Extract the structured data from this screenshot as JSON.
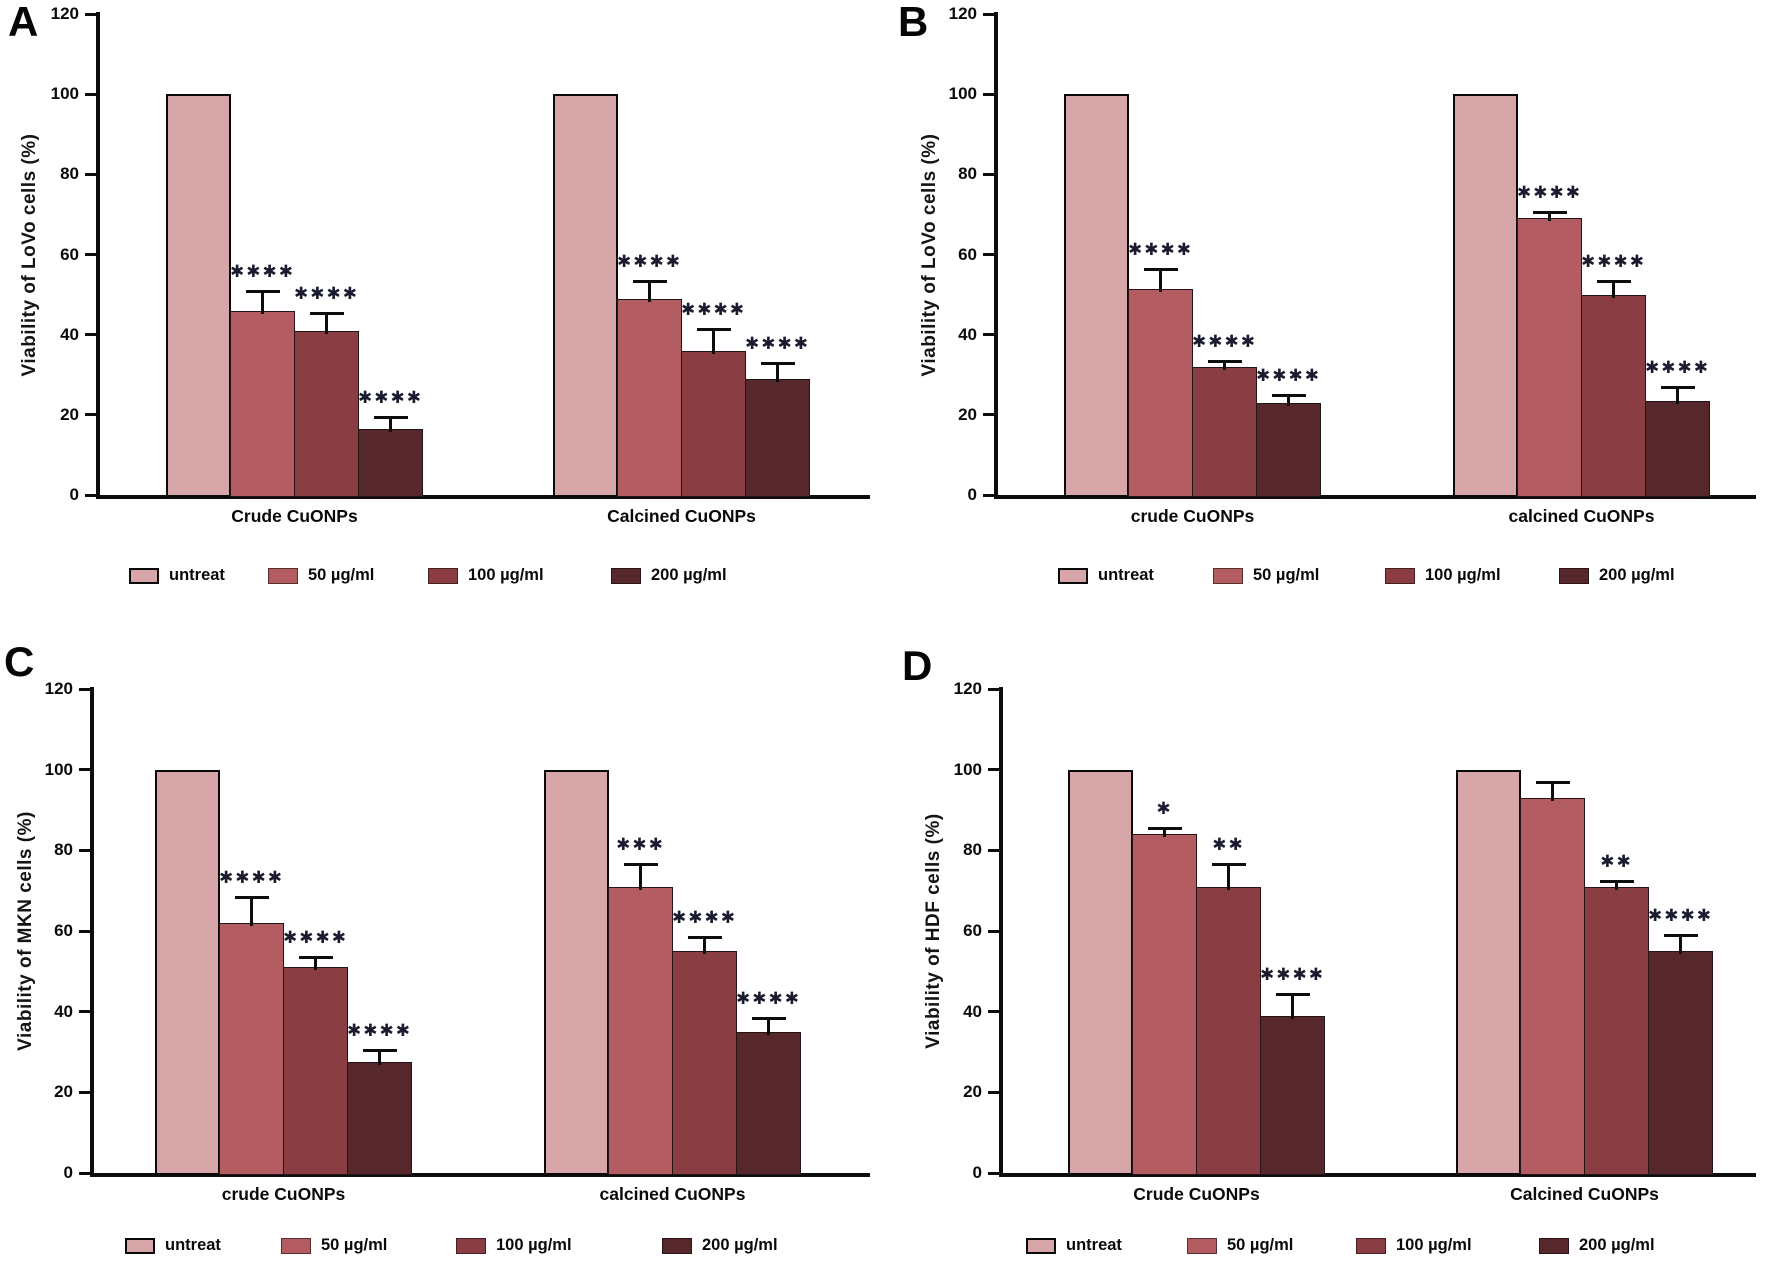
{
  "figure": {
    "bar_colors": [
      "#d7a6a9",
      "#b35c62",
      "#8a3e44",
      "#57282b"
    ],
    "axis_color": "#0d0d0d",
    "star_color": "#1b1b30",
    "y_ticks": [
      0,
      20,
      40,
      60,
      80,
      100,
      120
    ],
    "legend_labels": [
      "untreat",
      "50 µg/ml",
      "100 µg/ml",
      "200 µg/ml"
    ]
  },
  "chart_data": [
    {
      "type": "bar",
      "panel_label": "A",
      "ylabel": "Viability of LoVo cells (%)",
      "ylim": [
        0,
        120
      ],
      "series_labels": [
        "untreat",
        "50 µg/ml",
        "100 µg/ml",
        "200 µg/ml"
      ],
      "legend_position": "bottom",
      "grid": false,
      "groups": [
        {
          "label": "Crude CuONPs",
          "values": [
            100,
            46,
            41,
            16.5
          ],
          "errors_plus": [
            0,
            5,
            4.5,
            3
          ],
          "significance": [
            "",
            "****",
            "****",
            "****"
          ]
        },
        {
          "label": "Calcined CuONPs",
          "values": [
            100,
            49,
            36,
            29
          ],
          "errors_plus": [
            0,
            4.5,
            5.5,
            4
          ],
          "significance": [
            "",
            "****",
            "****",
            "****"
          ]
        }
      ]
    },
    {
      "type": "bar",
      "panel_label": "B",
      "ylabel": "Viability of LoVo cells (%)",
      "ylim": [
        0,
        120
      ],
      "series_labels": [
        "untreat",
        "50 µg/ml",
        "100 µg/ml",
        "200 µg/ml"
      ],
      "legend_position": "bottom",
      "grid": false,
      "groups": [
        {
          "label": "crude CuONPs",
          "values": [
            100,
            51.5,
            32,
            23
          ],
          "errors_plus": [
            0,
            5,
            1.5,
            2
          ],
          "significance": [
            "",
            "****",
            "****",
            "****"
          ]
        },
        {
          "label": "calcined CuONPs",
          "values": [
            100,
            69,
            50,
            23.5
          ],
          "errors_plus": [
            0,
            1.5,
            3.5,
            3.5
          ],
          "significance": [
            "",
            "****",
            "****",
            "****"
          ]
        }
      ]
    },
    {
      "type": "bar",
      "panel_label": "C",
      "ylabel": "Viability of MKN cells (%)",
      "ylim": [
        0,
        120
      ],
      "series_labels": [
        "untreat",
        "50 µg/ml",
        "100 µg/ml",
        "200 µg/ml"
      ],
      "legend_position": "bottom",
      "grid": false,
      "groups": [
        {
          "label": "crude CuONPs",
          "values": [
            100,
            62,
            51,
            27.5
          ],
          "errors_plus": [
            0,
            6.5,
            2.5,
            3
          ],
          "significance": [
            "",
            "****",
            "****",
            "****"
          ]
        },
        {
          "label": "calcined CuONPs",
          "values": [
            100,
            71,
            55,
            35
          ],
          "errors_plus": [
            0,
            5.5,
            3.5,
            3.5
          ],
          "significance": [
            "",
            "***",
            "****",
            "****"
          ]
        }
      ]
    },
    {
      "type": "bar",
      "panel_label": "D",
      "ylabel": "Viability of HDF cells (%)",
      "ylim": [
        0,
        120
      ],
      "series_labels": [
        "untreat",
        "50 µg/ml",
        "100 µg/ml",
        "200 µg/ml"
      ],
      "legend_position": "bottom",
      "grid": false,
      "groups": [
        {
          "label": "Crude CuONPs",
          "values": [
            100,
            84,
            71,
            39
          ],
          "errors_plus": [
            0,
            1.5,
            5.5,
            5.5
          ],
          "significance": [
            "",
            "*",
            "**",
            "****"
          ]
        },
        {
          "label": "Calcined CuONPs",
          "values": [
            100,
            93,
            71,
            55
          ],
          "errors_plus": [
            0,
            4,
            1.5,
            4
          ],
          "significance": [
            "",
            "",
            "**",
            "****"
          ]
        }
      ]
    }
  ]
}
